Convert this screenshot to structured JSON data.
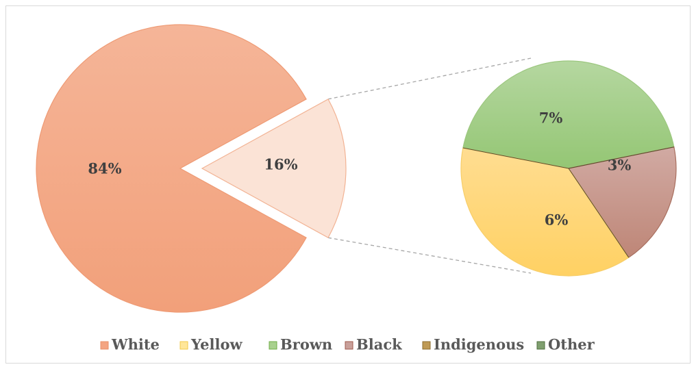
{
  "chart_data": {
    "type": "pie",
    "subtype": "pie-of-pie",
    "title": "",
    "main_pie": {
      "slices": [
        {
          "key": "white",
          "label": "84%",
          "value": 84,
          "color": "#F4A582"
        },
        {
          "key": "other_group",
          "label": "16%",
          "value": 16,
          "color": "#FBE3D6"
        }
      ]
    },
    "secondary_pie": {
      "slices": [
        {
          "key": "brown",
          "label": "7%",
          "value": 7,
          "color": "#A9D18E"
        },
        {
          "key": "black",
          "label": "3%",
          "value": 3,
          "color": "#C9A09A"
        },
        {
          "key": "yellow",
          "label": "6%",
          "value": 6,
          "color": "#FFD97A"
        }
      ]
    },
    "legend": {
      "placement": "bottom",
      "entries": [
        {
          "name": "White",
          "color": "#F4A582",
          "border": "#E8916A"
        },
        {
          "name": "Yellow",
          "color": "#FFE699",
          "border": "#F2C94C"
        },
        {
          "name": "Brown",
          "color": "#A9D18E",
          "border": "#70AD47"
        },
        {
          "name": "Black",
          "color": "#C9A09A",
          "border": "#A05A4C"
        },
        {
          "name": "Indigenous",
          "color": "#BF9A55",
          "border": "#8C6D2E"
        },
        {
          "name": "Other",
          "color": "#7F9F6F",
          "border": "#4F6F3F"
        }
      ]
    }
  }
}
